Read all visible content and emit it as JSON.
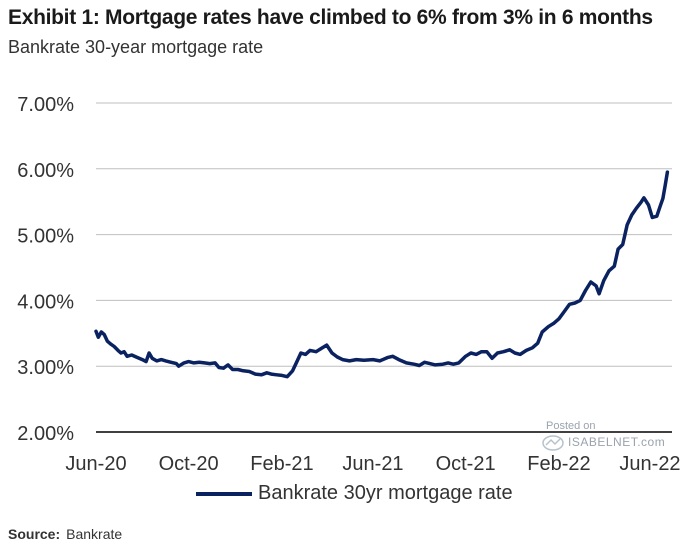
{
  "title": "Exhibit 1: Mortgage rates have climbed to 6% from 3% in 6 months",
  "subtitle": "Bankrate 30-year mortgage rate",
  "legend": {
    "label": "Bankrate 30yr mortgage rate"
  },
  "source": {
    "label": "Source:",
    "text": "Bankrate"
  },
  "watermark": {
    "posted": "Posted on",
    "name": "ISABELNET.com"
  },
  "colors": {
    "line": "#0b2261",
    "grid": "#bfbfbf",
    "axis": "#000000"
  },
  "chart_data": {
    "type": "line",
    "title": "Exhibit 1: Mortgage rates have climbed to 6% from 3% in 6 months",
    "subtitle": "Bankrate 30-year mortgage rate",
    "xlabel": "",
    "ylabel": "",
    "ylim": [
      2.0,
      7.0
    ],
    "yticks": [
      2.0,
      3.0,
      4.0,
      5.0,
      6.0,
      7.0
    ],
    "ytick_labels": [
      "2.00%",
      "3.00%",
      "4.00%",
      "5.00%",
      "6.00%",
      "7.00%"
    ],
    "xlim": [
      "2020-06-01",
      "2022-06-30"
    ],
    "xticks": [
      "2020-06-01",
      "2020-10-01",
      "2021-02-01",
      "2021-06-01",
      "2021-10-01",
      "2022-02-01",
      "2022-06-01"
    ],
    "xtick_labels": [
      "Jun-20",
      "Oct-20",
      "Feb-21",
      "Jun-21",
      "Oct-21",
      "Feb-22",
      "Jun-22"
    ],
    "grid": true,
    "legend_position": "bottom",
    "series": [
      {
        "name": "Bankrate 30yr mortgage rate",
        "points": [
          [
            "2020-06-01",
            3.53
          ],
          [
            "2020-06-04",
            3.44
          ],
          [
            "2020-06-08",
            3.52
          ],
          [
            "2020-06-12",
            3.48
          ],
          [
            "2020-06-16",
            3.38
          ],
          [
            "2020-06-20",
            3.34
          ],
          [
            "2020-06-25",
            3.3
          ],
          [
            "2020-06-30",
            3.24
          ],
          [
            "2020-07-04",
            3.2
          ],
          [
            "2020-07-08",
            3.22
          ],
          [
            "2020-07-12",
            3.15
          ],
          [
            "2020-07-18",
            3.17
          ],
          [
            "2020-07-24",
            3.14
          ],
          [
            "2020-08-01",
            3.1
          ],
          [
            "2020-08-06",
            3.07
          ],
          [
            "2020-08-10",
            3.2
          ],
          [
            "2020-08-14",
            3.12
          ],
          [
            "2020-08-20",
            3.08
          ],
          [
            "2020-08-26",
            3.1
          ],
          [
            "2020-09-01",
            3.08
          ],
          [
            "2020-09-08",
            3.06
          ],
          [
            "2020-09-15",
            3.04
          ],
          [
            "2020-09-18",
            3.0
          ],
          [
            "2020-09-25",
            3.05
          ],
          [
            "2020-10-01",
            3.07
          ],
          [
            "2020-10-08",
            3.05
          ],
          [
            "2020-10-15",
            3.06
          ],
          [
            "2020-10-22",
            3.05
          ],
          [
            "2020-10-29",
            3.04
          ],
          [
            "2020-11-05",
            3.05
          ],
          [
            "2020-11-10",
            2.98
          ],
          [
            "2020-11-16",
            2.97
          ],
          [
            "2020-11-22",
            3.02
          ],
          [
            "2020-11-28",
            2.95
          ],
          [
            "2020-12-05",
            2.95
          ],
          [
            "2020-12-12",
            2.93
          ],
          [
            "2020-12-20",
            2.92
          ],
          [
            "2020-12-28",
            2.88
          ],
          [
            "2021-01-05",
            2.87
          ],
          [
            "2021-01-12",
            2.9
          ],
          [
            "2021-01-18",
            2.88
          ],
          [
            "2021-01-25",
            2.87
          ],
          [
            "2021-02-01",
            2.86
          ],
          [
            "2021-02-08",
            2.84
          ],
          [
            "2021-02-15",
            2.93
          ],
          [
            "2021-02-20",
            3.05
          ],
          [
            "2021-02-26",
            3.2
          ],
          [
            "2021-03-04",
            3.18
          ],
          [
            "2021-03-10",
            3.24
          ],
          [
            "2021-03-18",
            3.22
          ],
          [
            "2021-03-25",
            3.27
          ],
          [
            "2021-04-01",
            3.32
          ],
          [
            "2021-04-08",
            3.2
          ],
          [
            "2021-04-15",
            3.14
          ],
          [
            "2021-04-22",
            3.1
          ],
          [
            "2021-05-01",
            3.08
          ],
          [
            "2021-05-10",
            3.1
          ],
          [
            "2021-05-20",
            3.09
          ],
          [
            "2021-06-01",
            3.1
          ],
          [
            "2021-06-10",
            3.08
          ],
          [
            "2021-06-20",
            3.13
          ],
          [
            "2021-06-27",
            3.15
          ],
          [
            "2021-07-05",
            3.1
          ],
          [
            "2021-07-15",
            3.05
          ],
          [
            "2021-07-25",
            3.03
          ],
          [
            "2021-08-01",
            3.01
          ],
          [
            "2021-08-08",
            3.06
          ],
          [
            "2021-08-15",
            3.04
          ],
          [
            "2021-08-22",
            3.02
          ],
          [
            "2021-09-01",
            3.03
          ],
          [
            "2021-09-08",
            3.05
          ],
          [
            "2021-09-15",
            3.03
          ],
          [
            "2021-09-22",
            3.05
          ],
          [
            "2021-10-01",
            3.15
          ],
          [
            "2021-10-08",
            3.2
          ],
          [
            "2021-10-15",
            3.18
          ],
          [
            "2021-10-22",
            3.22
          ],
          [
            "2021-10-29",
            3.22
          ],
          [
            "2021-11-05",
            3.12
          ],
          [
            "2021-11-12",
            3.2
          ],
          [
            "2021-11-20",
            3.22
          ],
          [
            "2021-11-28",
            3.25
          ],
          [
            "2021-12-05",
            3.2
          ],
          [
            "2021-12-12",
            3.18
          ],
          [
            "2021-12-20",
            3.24
          ],
          [
            "2021-12-28",
            3.28
          ],
          [
            "2022-01-04",
            3.35
          ],
          [
            "2022-01-10",
            3.52
          ],
          [
            "2022-01-18",
            3.6
          ],
          [
            "2022-01-25",
            3.65
          ],
          [
            "2022-02-01",
            3.72
          ],
          [
            "2022-02-08",
            3.83
          ],
          [
            "2022-02-15",
            3.94
          ],
          [
            "2022-02-22",
            3.96
          ],
          [
            "2022-03-01",
            4.0
          ],
          [
            "2022-03-08",
            4.15
          ],
          [
            "2022-03-15",
            4.28
          ],
          [
            "2022-03-22",
            4.22
          ],
          [
            "2022-03-26",
            4.1
          ],
          [
            "2022-04-01",
            4.3
          ],
          [
            "2022-04-08",
            4.45
          ],
          [
            "2022-04-15",
            4.52
          ],
          [
            "2022-04-20",
            4.78
          ],
          [
            "2022-04-26",
            4.85
          ],
          [
            "2022-05-02",
            5.15
          ],
          [
            "2022-05-08",
            5.3
          ],
          [
            "2022-05-14",
            5.4
          ],
          [
            "2022-05-20",
            5.49
          ],
          [
            "2022-05-24",
            5.56
          ],
          [
            "2022-05-30",
            5.45
          ],
          [
            "2022-06-04",
            5.26
          ],
          [
            "2022-06-10",
            5.28
          ],
          [
            "2022-06-14",
            5.42
          ],
          [
            "2022-06-18",
            5.55
          ],
          [
            "2022-06-21",
            5.75
          ],
          [
            "2022-06-24",
            5.95
          ]
        ]
      }
    ]
  }
}
